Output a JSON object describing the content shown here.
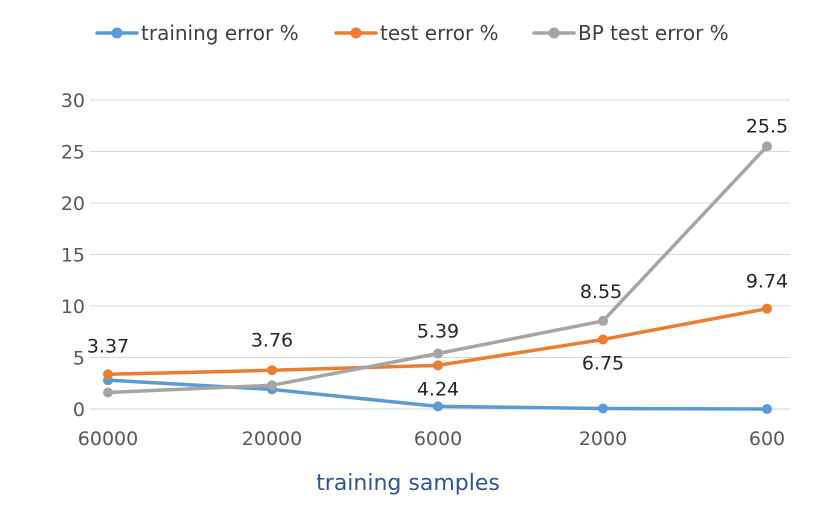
{
  "chart_data": {
    "type": "line",
    "title": "",
    "xlabel": "training samples",
    "ylabel": "",
    "categories": [
      "60000",
      "20000",
      "6000",
      "2000",
      "600"
    ],
    "ylim": [
      0,
      30
    ],
    "yticks": [
      0,
      5,
      10,
      15,
      20,
      25,
      30
    ],
    "grid": true,
    "legend_position": "top",
    "series": [
      {
        "name": "training error %",
        "color": "#5b9bd5",
        "values": [
          2.8,
          1.9,
          0.25,
          0.05,
          0.0
        ],
        "labels": [
          null,
          null,
          null,
          null,
          null
        ]
      },
      {
        "name": "test error %",
        "color": "#ed7d31",
        "values": [
          3.37,
          3.76,
          4.24,
          6.75,
          9.74
        ],
        "labels": [
          "3.37",
          "3.76",
          "4.24",
          "6.75",
          "9.74"
        ]
      },
      {
        "name": "BP test error %",
        "color": "#a5a5a5",
        "values": [
          1.6,
          2.3,
          5.39,
          8.55,
          25.5
        ],
        "labels": [
          null,
          null,
          "5.39",
          "8.55",
          "25.5"
        ]
      }
    ]
  }
}
